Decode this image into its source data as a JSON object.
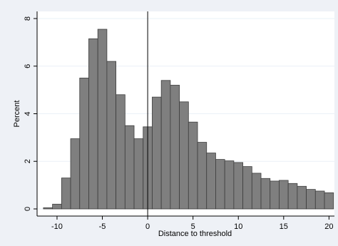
{
  "chart_data": {
    "type": "bar",
    "title": "",
    "xlabel": "Distance to threshold",
    "ylabel": "Percent",
    "xlim": [
      -12.2,
      20.6
    ],
    "ylim": [
      -0.3,
      8.3
    ],
    "bin_width": 1,
    "x_ticks": [
      -10,
      -5,
      0,
      5,
      10,
      15,
      20
    ],
    "y_ticks": [
      0,
      2,
      4,
      6,
      8
    ],
    "grid": "horizontal",
    "reference_line_x": 0,
    "bins": [
      {
        "x": -11,
        "value": 0.05
      },
      {
        "x": -10,
        "value": 0.2
      },
      {
        "x": -9,
        "value": 1.3
      },
      {
        "x": -8,
        "value": 2.95
      },
      {
        "x": -7,
        "value": 5.5
      },
      {
        "x": -6,
        "value": 7.15
      },
      {
        "x": -5,
        "value": 7.55
      },
      {
        "x": -4,
        "value": 6.2
      },
      {
        "x": -3,
        "value": 4.8
      },
      {
        "x": -2,
        "value": 3.5
      },
      {
        "x": -1,
        "value": 2.95
      },
      {
        "x": 0,
        "value": 3.45
      },
      {
        "x": 1,
        "value": 4.7
      },
      {
        "x": 2,
        "value": 5.4
      },
      {
        "x": 3,
        "value": 5.2
      },
      {
        "x": 4,
        "value": 4.5
      },
      {
        "x": 5,
        "value": 3.65
      },
      {
        "x": 6,
        "value": 2.8
      },
      {
        "x": 7,
        "value": 2.35
      },
      {
        "x": 8,
        "value": 2.08
      },
      {
        "x": 9,
        "value": 2.02
      },
      {
        "x": 10,
        "value": 1.95
      },
      {
        "x": 11,
        "value": 1.78
      },
      {
        "x": 12,
        "value": 1.5
      },
      {
        "x": 13,
        "value": 1.28
      },
      {
        "x": 14,
        "value": 1.17
      },
      {
        "x": 15,
        "value": 1.2
      },
      {
        "x": 16,
        "value": 1.07
      },
      {
        "x": 17,
        "value": 0.95
      },
      {
        "x": 18,
        "value": 0.82
      },
      {
        "x": 19,
        "value": 0.75
      },
      {
        "x": 20,
        "value": 0.68
      }
    ]
  },
  "colors": {
    "bar_fill": "#7f7f7f",
    "bar_stroke": "#3d3d3d",
    "plot_background": "#ffffff",
    "figure_background": "#eef1f6",
    "grid": "#eaf0f7",
    "reference_line": "#000000"
  }
}
